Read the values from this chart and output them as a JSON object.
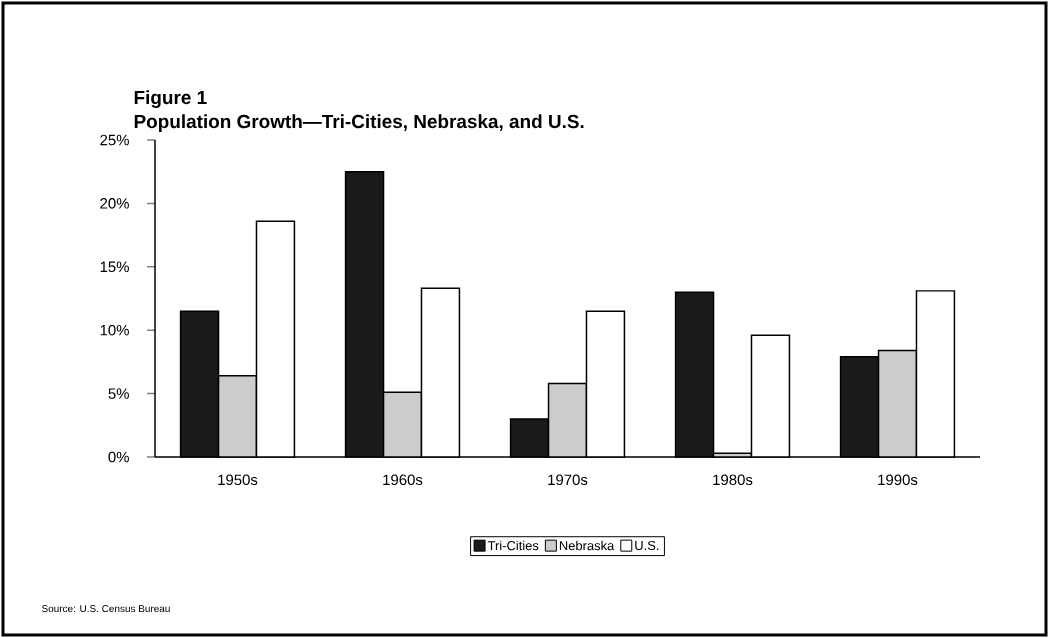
{
  "chart_data": {
    "type": "bar",
    "title": "Figure 1",
    "subtitle": "Population Growth—Tri-Cities, Nebraska, and U.S.",
    "categories": [
      "1950s",
      "1960s",
      "1970s",
      "1980s",
      "1990s"
    ],
    "series": [
      {
        "name": "Tri-Cities",
        "color": "#1a1a1a",
        "values": [
          11.5,
          22.5,
          3.0,
          13.0,
          7.9
        ]
      },
      {
        "name": "Nebraska",
        "color": "#cccccc",
        "values": [
          6.4,
          5.1,
          5.8,
          0.3,
          8.4
        ]
      },
      {
        "name": "U.S.",
        "color": "#ffffff",
        "values": [
          18.6,
          13.3,
          11.5,
          9.6,
          13.1
        ]
      }
    ],
    "ylim": [
      0,
      25
    ],
    "yticks": [
      {
        "value": 0,
        "label": "0%"
      },
      {
        "value": 5,
        "label": "5%"
      },
      {
        "value": 10,
        "label": "10%"
      },
      {
        "value": 15,
        "label": "15%"
      },
      {
        "value": 20,
        "label": "20%"
      },
      {
        "value": 25,
        "label": "25%"
      }
    ],
    "legend": "bottom",
    "grid": false,
    "annotations": [
      "Source: U.S. Census Bureau"
    ]
  }
}
